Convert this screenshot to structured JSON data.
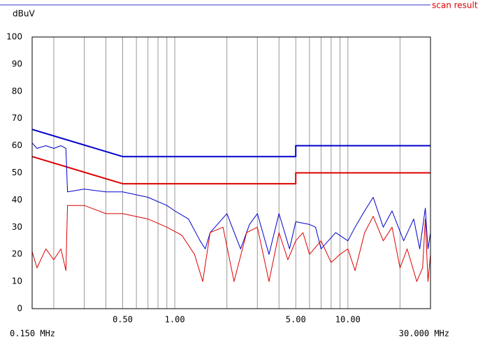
{
  "chart_data": {
    "type": "line",
    "title": "scan result",
    "y_label": "dBuV",
    "xscale": "log",
    "xlim": [
      0.15,
      30
    ],
    "ylim": [
      0,
      100
    ],
    "xticks": [
      {
        "value": 0.15,
        "label": "0.150 MHz"
      },
      {
        "value": 0.5,
        "label": "0.50"
      },
      {
        "value": 1,
        "label": "1.00"
      },
      {
        "value": 5,
        "label": "5.00"
      },
      {
        "value": 10,
        "label": "10.00"
      },
      {
        "value": 30,
        "label": "30.000 MHz"
      }
    ],
    "xgrid": [
      0.2,
      0.3,
      0.4,
      0.5,
      0.6,
      0.7,
      0.8,
      0.9,
      1,
      2,
      3,
      4,
      5,
      6,
      7,
      8,
      9,
      10,
      20
    ],
    "yticks": [
      0,
      10,
      20,
      30,
      40,
      50,
      60,
      70,
      80,
      90,
      100
    ],
    "series": [
      {
        "color": "#0000cc",
        "width": 2,
        "x": [
          0.15,
          0.5,
          5,
          5,
          30
        ],
        "values": [
          66,
          56,
          56,
          60,
          60
        ]
      },
      {
        "color": "#dd0000",
        "width": 2,
        "x": [
          0.15,
          0.5,
          5,
          5,
          30
        ],
        "values": [
          56,
          46,
          46,
          50,
          50
        ]
      },
      {
        "color": "#0000cc",
        "width": 1,
        "x": [
          0.15,
          0.16,
          0.18,
          0.2,
          0.22,
          0.235,
          0.24,
          0.3,
          0.4,
          0.5,
          0.7,
          0.9,
          1,
          1.2,
          1.4,
          1.5,
          1.6,
          2,
          2.4,
          2.7,
          3,
          3.5,
          4,
          4.6,
          5,
          6,
          6.5,
          7,
          8.5,
          10,
          11,
          12.5,
          14,
          16,
          18,
          21,
          24,
          26,
          28,
          29,
          30
        ],
        "values": [
          61,
          59,
          60,
          59,
          60,
          59,
          43,
          44,
          43,
          43,
          41,
          38,
          36,
          33,
          25,
          22,
          28,
          35,
          22,
          31,
          35,
          20,
          35,
          22,
          32,
          31,
          30,
          22,
          28,
          25,
          30,
          36,
          41,
          30,
          36,
          25,
          33,
          22,
          37,
          22,
          28
        ]
      },
      {
        "color": "#dd0000",
        "width": 1,
        "x": [
          0.15,
          0.16,
          0.18,
          0.2,
          0.22,
          0.235,
          0.24,
          0.3,
          0.4,
          0.5,
          0.7,
          0.9,
          1.1,
          1.3,
          1.45,
          1.6,
          1.9,
          2.2,
          2.6,
          3,
          3.5,
          4,
          4.5,
          5,
          5.5,
          6,
          7,
          8,
          9,
          10,
          11,
          12.5,
          14,
          16,
          18,
          20,
          22,
          25,
          27,
          28,
          29,
          30
        ],
        "values": [
          21,
          15,
          22,
          18,
          22,
          14,
          38,
          38,
          35,
          35,
          33,
          30,
          27,
          20,
          10,
          28,
          30,
          10,
          28,
          30,
          10,
          28,
          18,
          25,
          28,
          20,
          25,
          17,
          20,
          22,
          14,
          28,
          34,
          25,
          30,
          15,
          22,
          10,
          15,
          33,
          10,
          20
        ]
      }
    ]
  }
}
